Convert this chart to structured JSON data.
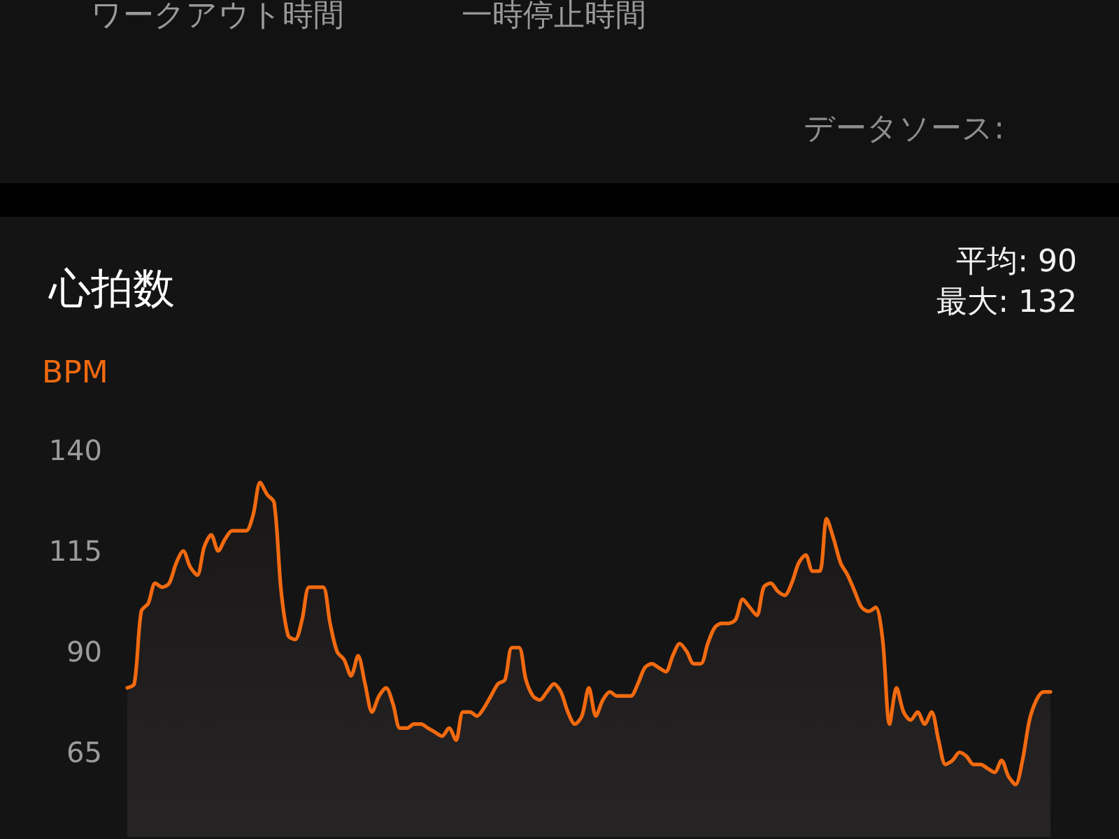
{
  "chart_data": {
    "type": "area",
    "title": "心拍数",
    "ylabel": "BPM",
    "annotations": [
      "ワークアウト時間",
      "一時停止時間",
      "データソース:",
      "平均: 90",
      "最大: 132"
    ],
    "categories": [
      null,
      null,
      null,
      null,
      null,
      null,
      null,
      null,
      null,
      null,
      null,
      null,
      null,
      null,
      null,
      null,
      null,
      null,
      null,
      null,
      null,
      null,
      null,
      null,
      null,
      null,
      null,
      null,
      null,
      null,
      null,
      null,
      null,
      null,
      null,
      null,
      null,
      null,
      null,
      null,
      null,
      null,
      null,
      null,
      null,
      null,
      null,
      null,
      null,
      null,
      null,
      null,
      null,
      null,
      null,
      null,
      null,
      null,
      null,
      null,
      null,
      null,
      null,
      null,
      null,
      null,
      null,
      null,
      null,
      null,
      null,
      null,
      null,
      null,
      null,
      null,
      null,
      null,
      null,
      null,
      null,
      null,
      null,
      null,
      null,
      null,
      null,
      null,
      null,
      null,
      null,
      null,
      null,
      null,
      null,
      null,
      null,
      null,
      null,
      null,
      null,
      null,
      null,
      null,
      null,
      null,
      null,
      null,
      null,
      null,
      null,
      null,
      null,
      null,
      null,
      null,
      null,
      null,
      null,
      null,
      null,
      null,
      null,
      null,
      null,
      null,
      null,
      null,
      null,
      null,
      null,
      null,
      null
    ],
    "values": [
      81,
      82,
      100,
      102,
      107,
      106,
      107,
      112,
      115,
      111,
      109,
      116,
      119,
      115,
      118,
      120,
      120,
      120,
      124,
      132,
      129,
      127,
      105,
      94,
      93,
      98,
      106,
      106,
      106,
      97,
      90,
      88,
      84,
      89,
      82,
      75,
      79,
      81,
      77,
      71,
      71,
      72,
      72,
      71,
      70,
      69,
      71,
      68,
      75,
      75,
      74,
      76,
      79,
      82,
      83,
      91,
      91,
      83,
      79,
      78,
      80,
      82,
      80,
      75,
      72,
      74,
      81,
      74,
      78,
      80,
      79,
      79,
      79,
      82,
      86,
      87,
      86,
      85,
      89,
      92,
      90,
      87,
      87,
      92,
      96,
      97,
      97,
      98,
      103,
      101,
      99,
      106,
      107,
      105,
      104,
      107,
      112,
      114,
      110,
      110,
      123,
      118,
      112,
      109,
      105,
      101,
      100,
      101,
      93,
      72,
      81,
      75,
      73,
      75,
      72,
      75,
      68,
      62,
      63,
      65,
      64,
      62,
      62,
      61,
      60,
      63,
      59,
      57,
      63,
      73,
      78,
      80,
      80
    ],
    "color": "#f26a10",
    "ylim": [
      44,
      140
    ],
    "yticks": [
      65,
      90,
      115,
      140
    ],
    "tick_labels": "y"
  }
}
